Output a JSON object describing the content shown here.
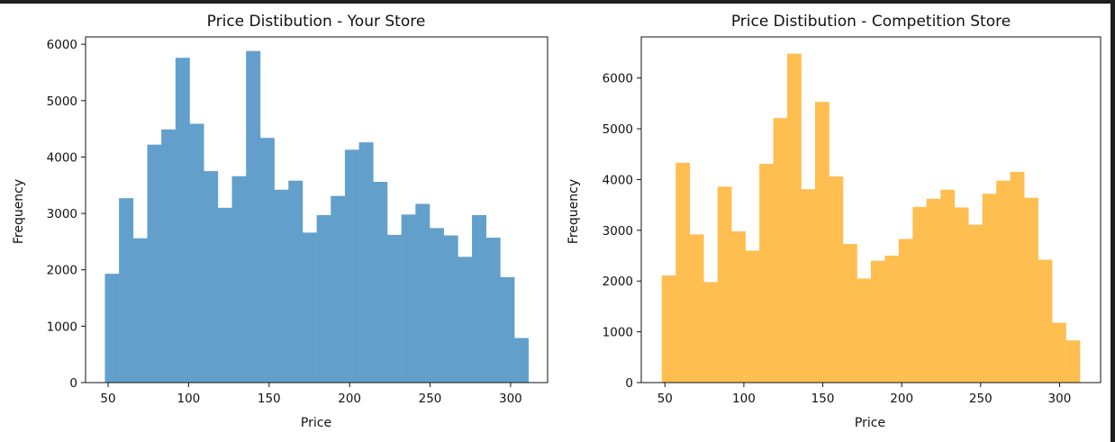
{
  "chart_data": [
    {
      "type": "bar",
      "title": "Price Distibution - Your Store",
      "xlabel": "Price",
      "ylabel": "Frequency",
      "bin_start": 48,
      "bin_width": 8.77,
      "values": [
        1930,
        3270,
        2560,
        4220,
        4490,
        5760,
        4590,
        3750,
        3100,
        3660,
        5880,
        4340,
        3420,
        3580,
        2660,
        2970,
        3310,
        4130,
        4260,
        3560,
        2620,
        2980,
        3170,
        2740,
        2610,
        2230,
        2970,
        2570,
        1870,
        790
      ],
      "xlim": [
        36,
        323
      ],
      "ylim": [
        0,
        6130
      ],
      "xticks": [
        50,
        100,
        150,
        200,
        250,
        300
      ],
      "yticks": [
        0,
        1000,
        2000,
        3000,
        4000,
        5000,
        6000
      ],
      "color": "#62a0cb"
    },
    {
      "type": "bar",
      "title": "Price Distibution - Competition Store",
      "xlabel": "Price",
      "ylabel": "Frequency",
      "bin_start": 48,
      "bin_width": 8.83,
      "values": [
        2110,
        4330,
        2920,
        1980,
        3860,
        2980,
        2600,
        4310,
        5210,
        6480,
        3810,
        5530,
        4060,
        2730,
        2050,
        2400,
        2500,
        2830,
        3460,
        3620,
        3800,
        3450,
        3110,
        3720,
        3980,
        4150,
        3640,
        2420,
        1180,
        830
      ],
      "xlim": [
        35,
        326
      ],
      "ylim": [
        0,
        6810
      ],
      "xticks": [
        50,
        100,
        150,
        200,
        250,
        300
      ],
      "yticks": [
        0,
        1000,
        2000,
        3000,
        4000,
        5000,
        6000
      ],
      "color": "#ffbe50"
    }
  ]
}
